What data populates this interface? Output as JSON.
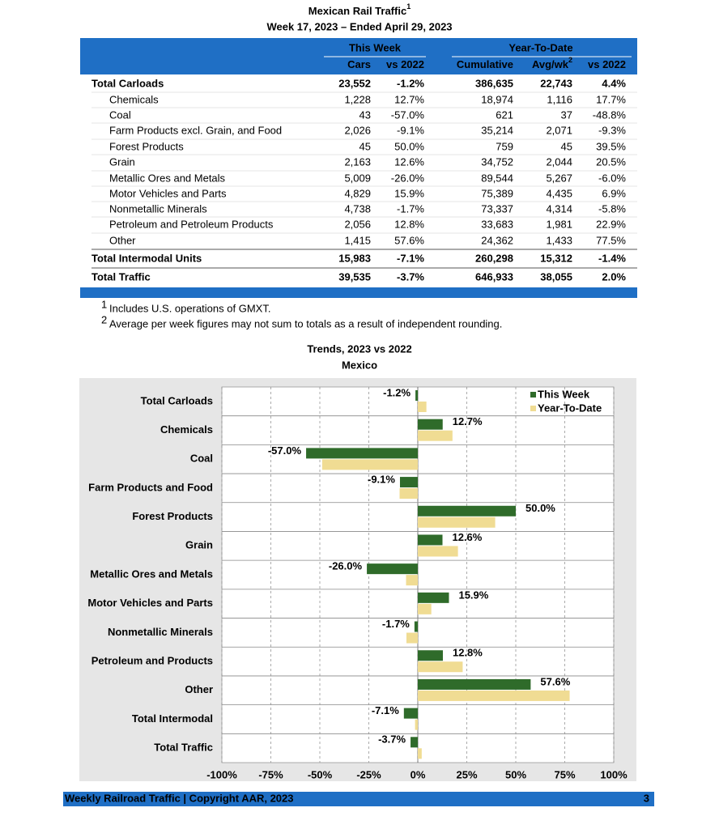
{
  "header": {
    "title": "Mexican Rail Traffic",
    "title_mark": "1",
    "subtitle": "Week 17, 2023 – Ended April 29, 2023"
  },
  "table": {
    "group_headers": [
      "This Week",
      "Year-To-Date"
    ],
    "columns": [
      {
        "text": "Cars"
      },
      {
        "text": "vs 2022",
        "signed": true
      },
      {
        "text": "Cumulative"
      },
      {
        "text": "Avg/wk",
        "mark": "2"
      },
      {
        "text": "vs 2022",
        "signed": true
      }
    ],
    "positive_color": "#3f8f2f",
    "negative_color": "#e8251f",
    "rows": [
      {
        "label": "Total Carloads",
        "total": true,
        "cells": [
          "23,552",
          "-1.2%",
          "386,635",
          "22,743",
          "4.4%"
        ]
      },
      {
        "label": "Chemicals",
        "cells": [
          "1,228",
          "12.7%",
          "18,974",
          "1,116",
          "17.7%"
        ]
      },
      {
        "label": "Coal",
        "cells": [
          "43",
          "-57.0%",
          "621",
          "37",
          "-48.8%"
        ]
      },
      {
        "label": "Farm Products excl. Grain, and Food",
        "cells": [
          "2,026",
          "-9.1%",
          "35,214",
          "2,071",
          "-9.3%"
        ]
      },
      {
        "label": "Forest Products",
        "cells": [
          "45",
          "50.0%",
          "759",
          "45",
          "39.5%"
        ]
      },
      {
        "label": "Grain",
        "cells": [
          "2,163",
          "12.6%",
          "34,752",
          "2,044",
          "20.5%"
        ]
      },
      {
        "label": "Metallic Ores and Metals",
        "cells": [
          "5,009",
          "-26.0%",
          "89,544",
          "5,267",
          "-6.0%"
        ]
      },
      {
        "label": "Motor Vehicles and Parts",
        "cells": [
          "4,829",
          "15.9%",
          "75,389",
          "4,435",
          "6.9%"
        ]
      },
      {
        "label": "Nonmetallic Minerals",
        "cells": [
          "4,738",
          "-1.7%",
          "73,337",
          "4,314",
          "-5.8%"
        ]
      },
      {
        "label": "Petroleum and Petroleum Products",
        "cells": [
          "2,056",
          "12.8%",
          "33,683",
          "1,981",
          "22.9%"
        ]
      },
      {
        "label": "Other",
        "cells": [
          "1,415",
          "57.6%",
          "24,362",
          "1,433",
          "77.5%"
        ]
      },
      {
        "label": "Total Intermodal Units",
        "total": true,
        "cells": [
          "15,983",
          "-7.1%",
          "260,298",
          "15,312",
          "-1.4%"
        ]
      },
      {
        "label": "Total Traffic",
        "total": true,
        "cells": [
          "39,535",
          "-3.7%",
          "646,933",
          "38,055",
          "2.0%"
        ]
      }
    ]
  },
  "footnotes": [
    {
      "mark": "1",
      "text": "Includes U.S. operations of GMXT."
    },
    {
      "mark": "2",
      "text": "Average per week figures may not sum to totals as a result of independent rounding."
    }
  ],
  "chart_data": {
    "type": "bar",
    "orientation": "horizontal",
    "title": "Trends, 2023 vs 2022",
    "subtitle": "Mexico",
    "categories": [
      "Total Carloads",
      "Chemicals",
      "Coal",
      "Farm Products and Food",
      "Forest Products",
      "Grain",
      "Metallic Ores and Metals",
      "Motor Vehicles and Parts",
      "Nonmetallic Minerals",
      "Petroleum and Products",
      "Other",
      "Total Intermodal",
      "Total Traffic"
    ],
    "series": [
      {
        "name": "This Week",
        "color": "#2f6b2a",
        "values": [
          -1.2,
          12.7,
          -57.0,
          -9.1,
          50.0,
          12.6,
          -26.0,
          15.9,
          -1.7,
          12.8,
          57.6,
          -7.1,
          -3.7
        ],
        "value_labels": [
          "-1.2%",
          "12.7%",
          "-57.0%",
          "-9.1%",
          "50.0%",
          "12.6%",
          "-26.0%",
          "15.9%",
          "-1.7%",
          "12.8%",
          "57.6%",
          "-7.1%",
          "-3.7%"
        ]
      },
      {
        "name": "Year-To-Date",
        "color": "#f0dc93",
        "values": [
          4.4,
          17.7,
          -48.8,
          -9.3,
          39.5,
          20.5,
          -6.0,
          6.9,
          -5.8,
          22.9,
          77.5,
          -1.4,
          2.0
        ]
      }
    ],
    "xlim": [
      -100,
      100
    ],
    "xticks": [
      {
        "value": -100,
        "label": "-100%"
      },
      {
        "value": -75,
        "label": "-75%"
      },
      {
        "value": -50,
        "label": "-50%"
      },
      {
        "value": -25,
        "label": "-25%"
      },
      {
        "value": 0,
        "label": "0%"
      },
      {
        "value": 25,
        "label": "25%"
      },
      {
        "value": 50,
        "label": "50%"
      },
      {
        "value": 75,
        "label": "75%"
      },
      {
        "value": 100,
        "label": "100%"
      }
    ],
    "grid": true,
    "legend": "top-right"
  },
  "footer": {
    "text": "Weekly Railroad Traffic | Copyright AAR, 2023",
    "page": "3"
  }
}
